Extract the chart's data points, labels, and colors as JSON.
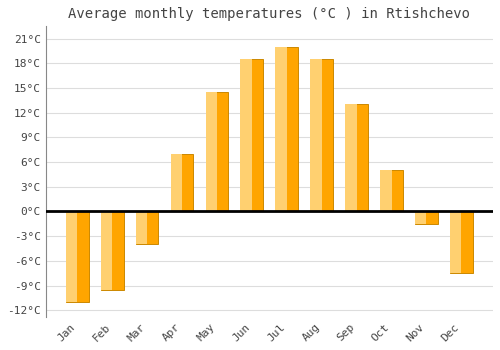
{
  "months": [
    "Jan",
    "Feb",
    "Mar",
    "Apr",
    "May",
    "Jun",
    "Jul",
    "Aug",
    "Sep",
    "Oct",
    "Nov",
    "Dec"
  ],
  "temperatures": [
    -11.0,
    -9.5,
    -4.0,
    7.0,
    14.5,
    18.5,
    20.0,
    18.5,
    13.0,
    5.0,
    -1.5,
    -7.5
  ],
  "bar_color": "#FFA500",
  "bar_edge_color": "#CC8800",
  "bar_edge_linewidth": 0.7,
  "title": "Average monthly temperatures (°C ) in Rtishchevo",
  "title_fontsize": 10,
  "ylabel_ticks": [
    "-12°C",
    "-9°C",
    "-6°C",
    "-3°C",
    "0°C",
    "3°C",
    "6°C",
    "9°C",
    "12°C",
    "15°C",
    "18°C",
    "21°C"
  ],
  "ytick_values": [
    -12,
    -9,
    -6,
    -3,
    0,
    3,
    6,
    9,
    12,
    15,
    18,
    21
  ],
  "ylim": [
    -12.8,
    22.5
  ],
  "plot_bg_color": "#ffffff",
  "fig_bg_color": "#ffffff",
  "grid_color": "#dddddd",
  "zero_line_color": "#000000",
  "font_color": "#444444",
  "font_family": "monospace",
  "tick_fontsize": 8,
  "bar_width": 0.65
}
